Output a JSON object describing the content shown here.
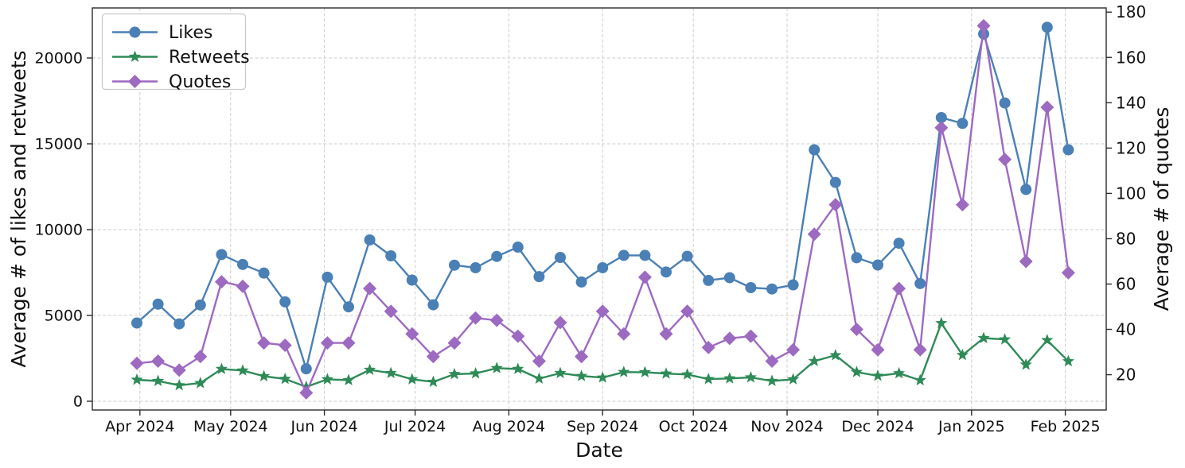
{
  "chart_data": {
    "type": "line",
    "title": "",
    "xlabel": "Date",
    "ylabel_left": "Average # of likes and retweets",
    "ylabel_right": "Average # of quotes",
    "grid": true,
    "legend_position": "upper-left",
    "x_ticks": [
      {
        "label": "Apr 2024",
        "date": "2024-04-01"
      },
      {
        "label": "May 2024",
        "date": "2024-05-01"
      },
      {
        "label": "Jun 2024",
        "date": "2024-06-01"
      },
      {
        "label": "Jul 2024",
        "date": "2024-07-01"
      },
      {
        "label": "Aug 2024",
        "date": "2024-08-01"
      },
      {
        "label": "Sep 2024",
        "date": "2024-09-01"
      },
      {
        "label": "Oct 2024",
        "date": "2024-10-01"
      },
      {
        "label": "Nov 2024",
        "date": "2024-11-01"
      },
      {
        "label": "Dec 2024",
        "date": "2024-12-01"
      },
      {
        "label": "Jan 2025",
        "date": "2025-01-01"
      },
      {
        "label": "Feb 2025",
        "date": "2025-02-01"
      }
    ],
    "y_left": {
      "ticks": [
        0,
        5000,
        10000,
        15000,
        20000
      ],
      "min": 0,
      "max": 22900
    },
    "y_right": {
      "ticks": [
        20,
        40,
        60,
        80,
        100,
        120,
        140,
        160,
        180
      ],
      "min": 0,
      "max": 182
    },
    "dates": [
      "2024-03-31",
      "2024-04-07",
      "2024-04-14",
      "2024-04-21",
      "2024-04-28",
      "2024-05-05",
      "2024-05-12",
      "2024-05-19",
      "2024-05-26",
      "2024-06-02",
      "2024-06-09",
      "2024-06-16",
      "2024-06-23",
      "2024-06-30",
      "2024-07-07",
      "2024-07-14",
      "2024-07-21",
      "2024-07-28",
      "2024-08-04",
      "2024-08-11",
      "2024-08-18",
      "2024-08-25",
      "2024-09-01",
      "2024-09-08",
      "2024-09-15",
      "2024-09-22",
      "2024-09-29",
      "2024-10-06",
      "2024-10-13",
      "2024-10-20",
      "2024-10-27",
      "2024-11-03",
      "2024-11-10",
      "2024-11-17",
      "2024-11-24",
      "2024-12-01",
      "2024-12-08",
      "2024-12-15",
      "2024-12-22",
      "2024-12-29",
      "2025-01-05",
      "2025-01-12",
      "2025-01-19",
      "2025-01-26",
      "2025-02-02"
    ],
    "series": [
      {
        "name": "Likes",
        "axis": "left",
        "color": "#4a80b5",
        "marker": "circle",
        "values": [
          4560,
          5660,
          4510,
          5610,
          8550,
          7970,
          7470,
          5790,
          1890,
          7230,
          5500,
          9400,
          8470,
          7060,
          5620,
          7930,
          7780,
          8440,
          8980,
          7260,
          8380,
          6950,
          7780,
          8500,
          8500,
          7530,
          8450,
          7040,
          7200,
          6620,
          6540,
          6780,
          14650,
          12750,
          8360,
          7940,
          9210,
          6860,
          16530,
          16190,
          21400,
          17380,
          12340,
          21790,
          14650
        ]
      },
      {
        "name": "Retweets",
        "axis": "left",
        "color": "#2e8b57",
        "marker": "star",
        "values": [
          1250,
          1180,
          930,
          1060,
          1880,
          1790,
          1460,
          1300,
          840,
          1280,
          1230,
          1830,
          1640,
          1280,
          1130,
          1580,
          1620,
          1930,
          1880,
          1320,
          1640,
          1470,
          1380,
          1700,
          1690,
          1610,
          1560,
          1290,
          1330,
          1390,
          1180,
          1280,
          2340,
          2680,
          1700,
          1480,
          1630,
          1220,
          4550,
          2690,
          3680,
          3600,
          2130,
          3560,
          2330
        ]
      },
      {
        "name": "Quotes",
        "axis": "right",
        "color": "#9d6ac1",
        "marker": "diamond",
        "values": [
          25,
          26,
          22,
          28,
          61,
          59,
          34,
          33,
          12,
          34,
          34,
          58,
          48,
          38,
          28,
          34,
          45,
          44,
          37,
          26,
          43,
          28,
          48,
          38,
          63,
          38,
          48,
          32,
          36,
          37,
          26,
          31,
          82,
          95,
          40,
          31,
          58,
          31,
          129,
          95,
          174,
          115,
          70,
          138,
          65
        ]
      }
    ],
    "colors": {
      "background": "#ffffff",
      "grid": "#cccccc",
      "spine": "#2b2b2b",
      "text": "#111111"
    }
  }
}
